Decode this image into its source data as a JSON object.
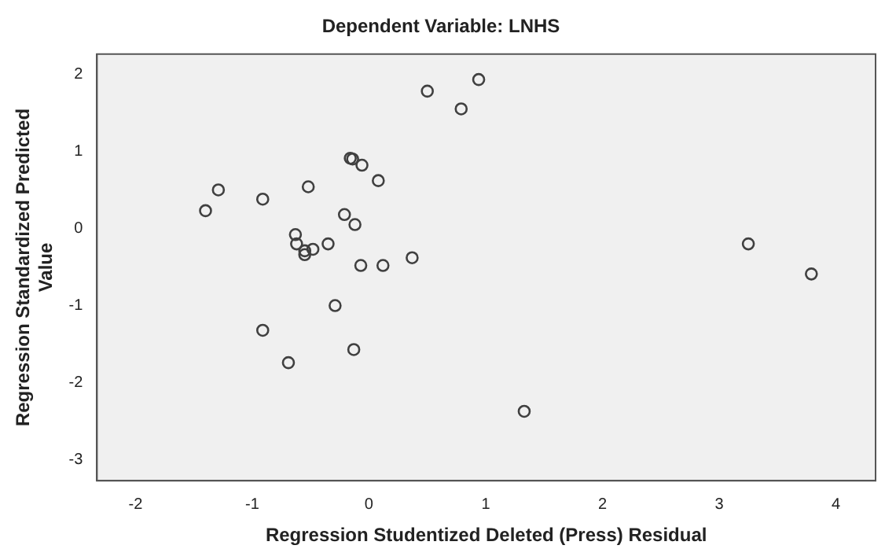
{
  "chart_data": {
    "type": "scatter",
    "title": "Dependent Variable: LNHS",
    "xlabel": "Regression Studentized Deleted (Press) Residual",
    "ylabel": "Regression Standardized Predicted Value",
    "x": [
      -1.4,
      -1.29,
      -0.91,
      -0.52,
      -0.16,
      -0.14,
      -0.06,
      0.08,
      0.5,
      0.79,
      0.94,
      -0.21,
      -0.12,
      -0.63,
      -0.62,
      -0.55,
      -0.55,
      -0.48,
      -0.35,
      -0.07,
      0.12,
      0.37,
      -0.29,
      -0.91,
      -0.13,
      -0.69,
      3.25,
      3.79,
      1.33
    ],
    "series": [
      {
        "color": "#404040",
        "values": [
          0.23,
          0.5,
          0.38,
          0.54,
          0.91,
          0.9,
          0.82,
          0.62,
          1.78,
          1.55,
          1.93,
          0.18,
          0.05,
          -0.08,
          -0.2,
          -0.29,
          -0.34,
          -0.27,
          -0.2,
          -0.48,
          -0.48,
          -0.38,
          -1.0,
          -1.32,
          -1.57,
          -1.74,
          -0.2,
          -0.59,
          -2.37
        ]
      }
    ],
    "xlim": [
      -2.33,
      4.34
    ],
    "ylim": [
      -3.27,
      2.26
    ],
    "xticks": [
      -2,
      -1,
      0,
      1,
      2,
      3,
      4
    ],
    "yticks": [
      -3,
      -2,
      -1,
      0,
      1,
      2
    ],
    "marker": "circle",
    "grid": false,
    "legend": false
  }
}
